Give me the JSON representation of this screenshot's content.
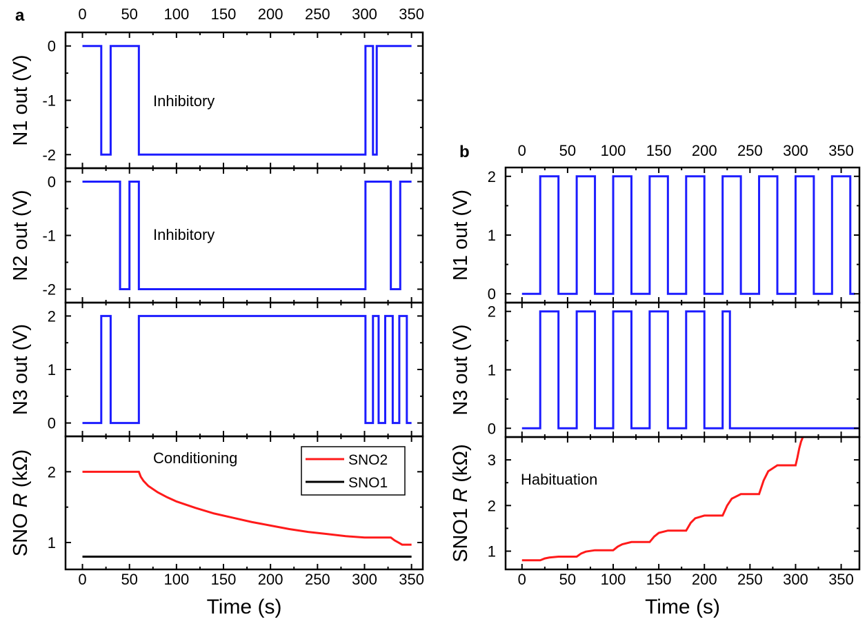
{
  "panels": [
    {
      "label": "a",
      "xlabel": "Time (s)",
      "xlim": [
        -18,
        362
      ],
      "xticks": [
        0,
        50,
        100,
        150,
        200,
        250,
        300,
        350
      ],
      "subplots": [
        {
          "type": "line",
          "ylabel": "N1 out (V)",
          "ylim": [
            -2.25,
            0.25
          ],
          "yticks": [
            -2,
            -1,
            0
          ],
          "yticklabels": [
            "-2",
            "-1",
            "0"
          ],
          "annotation": "Inhibitory",
          "series": [
            {
              "color": "#1c1cff",
              "x": [
                0,
                20,
                20,
                30,
                30,
                60,
                60,
                301,
                301,
                309,
                309,
                313,
                313,
                322,
                322,
                350
              ],
              "y": [
                0,
                0,
                -2,
                -2,
                0,
                0,
                -2,
                -2,
                0,
                0,
                -2,
                -2,
                0,
                0,
                0,
                0
              ]
            }
          ]
        },
        {
          "type": "line",
          "ylabel": "N2 out (V)",
          "ylim": [
            -2.25,
            0.25
          ],
          "yticks": [
            -2,
            -1,
            0
          ],
          "yticklabels": [
            "-2",
            "-1",
            "0"
          ],
          "annotation": "Inhibitory",
          "series": [
            {
              "color": "#1c1cff",
              "x": [
                0,
                40,
                40,
                50,
                50,
                60,
                60,
                301,
                301,
                328,
                328,
                338,
                338,
                350
              ],
              "y": [
                0,
                0,
                -2,
                -2,
                0,
                0,
                -2,
                -2,
                0,
                0,
                -2,
                -2,
                0,
                0
              ]
            }
          ]
        },
        {
          "type": "line",
          "ylabel": "N3 out (V)",
          "ylim": [
            -0.25,
            2.25
          ],
          "yticks": [
            0,
            1,
            2
          ],
          "yticklabels": [
            "0",
            "1",
            "2"
          ],
          "annotation": "",
          "series": [
            {
              "color": "#1c1cff",
              "x": [
                0,
                20,
                20,
                30,
                30,
                60,
                60,
                301,
                301,
                309,
                309,
                315,
                315,
                322,
                322,
                330,
                330,
                337,
                337,
                345,
                345,
                350
              ],
              "y": [
                0,
                0,
                2,
                2,
                0,
                0,
                2,
                2,
                0,
                0,
                2,
                2,
                0,
                0,
                2,
                2,
                0,
                0,
                2,
                2,
                0,
                0
              ]
            }
          ]
        },
        {
          "type": "line",
          "ylabel_prefix": "SNO ",
          "ylabel_italic": "R",
          "ylabel_suffix": " (kΩ)",
          "ylim": [
            0.62,
            2.5
          ],
          "yticks": [
            1,
            2
          ],
          "yticklabels": [
            "1",
            "2"
          ],
          "annotation": "Conditioning",
          "legend": "top-right",
          "series": [
            {
              "name": "SNO2",
              "color": "#ff1a1a",
              "x": [
                0,
                60,
                62,
                65,
                70,
                80,
                90,
                100,
                120,
                140,
                160,
                180,
                200,
                220,
                240,
                260,
                280,
                300,
                310,
                320,
                328,
                332,
                336,
                340,
                350
              ],
              "y": [
                2.0,
                2.0,
                1.93,
                1.87,
                1.8,
                1.71,
                1.64,
                1.58,
                1.49,
                1.41,
                1.35,
                1.29,
                1.24,
                1.19,
                1.15,
                1.12,
                1.09,
                1.07,
                1.07,
                1.07,
                1.07,
                1.03,
                1.0,
                0.97,
                0.97
              ]
            },
            {
              "name": "SNO1",
              "color": "#000000",
              "x": [
                0,
                350
              ],
              "y": [
                0.8,
                0.8
              ]
            }
          ]
        }
      ]
    },
    {
      "label": "b",
      "xlabel": "Time (s)",
      "xlim": [
        -18,
        370
      ],
      "xticks": [
        0,
        50,
        100,
        150,
        200,
        250,
        300,
        350
      ],
      "subplots": [
        {
          "type": "line",
          "ylabel": "N1 out (V)",
          "ylim": [
            -0.15,
            2.15
          ],
          "yticks": [
            0,
            1,
            2
          ],
          "yticklabels": [
            "0",
            "1",
            "2"
          ],
          "annotation": "",
          "series": [
            {
              "color": "#1c1cff",
              "x": [
                0,
                20,
                20,
                40,
                40,
                60,
                60,
                80,
                80,
                100,
                100,
                120,
                120,
                140,
                140,
                160,
                160,
                180,
                180,
                200,
                200,
                220,
                220,
                240,
                240,
                260,
                260,
                280,
                280,
                300,
                300,
                320,
                320,
                340,
                340,
                360,
                360,
                365
              ],
              "y": [
                0,
                0,
                2,
                2,
                0,
                0,
                2,
                2,
                0,
                0,
                2,
                2,
                0,
                0,
                2,
                2,
                0,
                0,
                2,
                2,
                0,
                0,
                2,
                2,
                0,
                0,
                2,
                2,
                0,
                0,
                2,
                2,
                0,
                0,
                2,
                2,
                0,
                0
              ]
            }
          ]
        },
        {
          "type": "line",
          "ylabel": "N3 out (V)",
          "ylim": [
            -0.15,
            2.15
          ],
          "yticks": [
            0,
            1,
            2
          ],
          "yticklabels": [
            "0",
            "1",
            "2"
          ],
          "annotation": "",
          "series": [
            {
              "color": "#1c1cff",
              "x": [
                0,
                20,
                20,
                40,
                40,
                60,
                60,
                80,
                80,
                100,
                100,
                120,
                120,
                140,
                140,
                160,
                160,
                180,
                180,
                200,
                200,
                220,
                220,
                228,
                228,
                370
              ],
              "y": [
                0,
                0,
                2,
                2,
                0,
                0,
                2,
                2,
                0,
                0,
                2,
                2,
                0,
                0,
                2,
                2,
                0,
                0,
                2,
                2,
                0,
                0,
                2,
                2,
                0,
                0
              ]
            }
          ]
        },
        {
          "type": "line",
          "ylabel_prefix": "SNO1 ",
          "ylabel_italic": "R",
          "ylabel_suffix": " (kΩ)",
          "ylim": [
            0.6,
            3.5
          ],
          "yticks": [
            1,
            2,
            3
          ],
          "yticklabels": [
            "1",
            "2",
            "3"
          ],
          "annotation": "Habituation",
          "series": [
            {
              "color": "#ff1a1a",
              "x": [
                0,
                20,
                25,
                30,
                40,
                60,
                65,
                70,
                80,
                100,
                105,
                110,
                120,
                140,
                145,
                150,
                160,
                180,
                185,
                190,
                200,
                220,
                225,
                230,
                240,
                260,
                265,
                270,
                280,
                300,
                302,
                304,
                306,
                308
              ],
              "y": [
                0.8,
                0.8,
                0.84,
                0.86,
                0.88,
                0.88,
                0.95,
                0.99,
                1.02,
                1.02,
                1.1,
                1.15,
                1.2,
                1.2,
                1.32,
                1.4,
                1.45,
                1.45,
                1.62,
                1.72,
                1.78,
                1.78,
                2.0,
                2.15,
                2.25,
                2.25,
                2.55,
                2.75,
                2.88,
                2.88,
                3.05,
                3.25,
                3.4,
                3.5
              ]
            }
          ]
        }
      ]
    }
  ],
  "legend_entries": [
    "SNO2",
    "SNO1"
  ]
}
